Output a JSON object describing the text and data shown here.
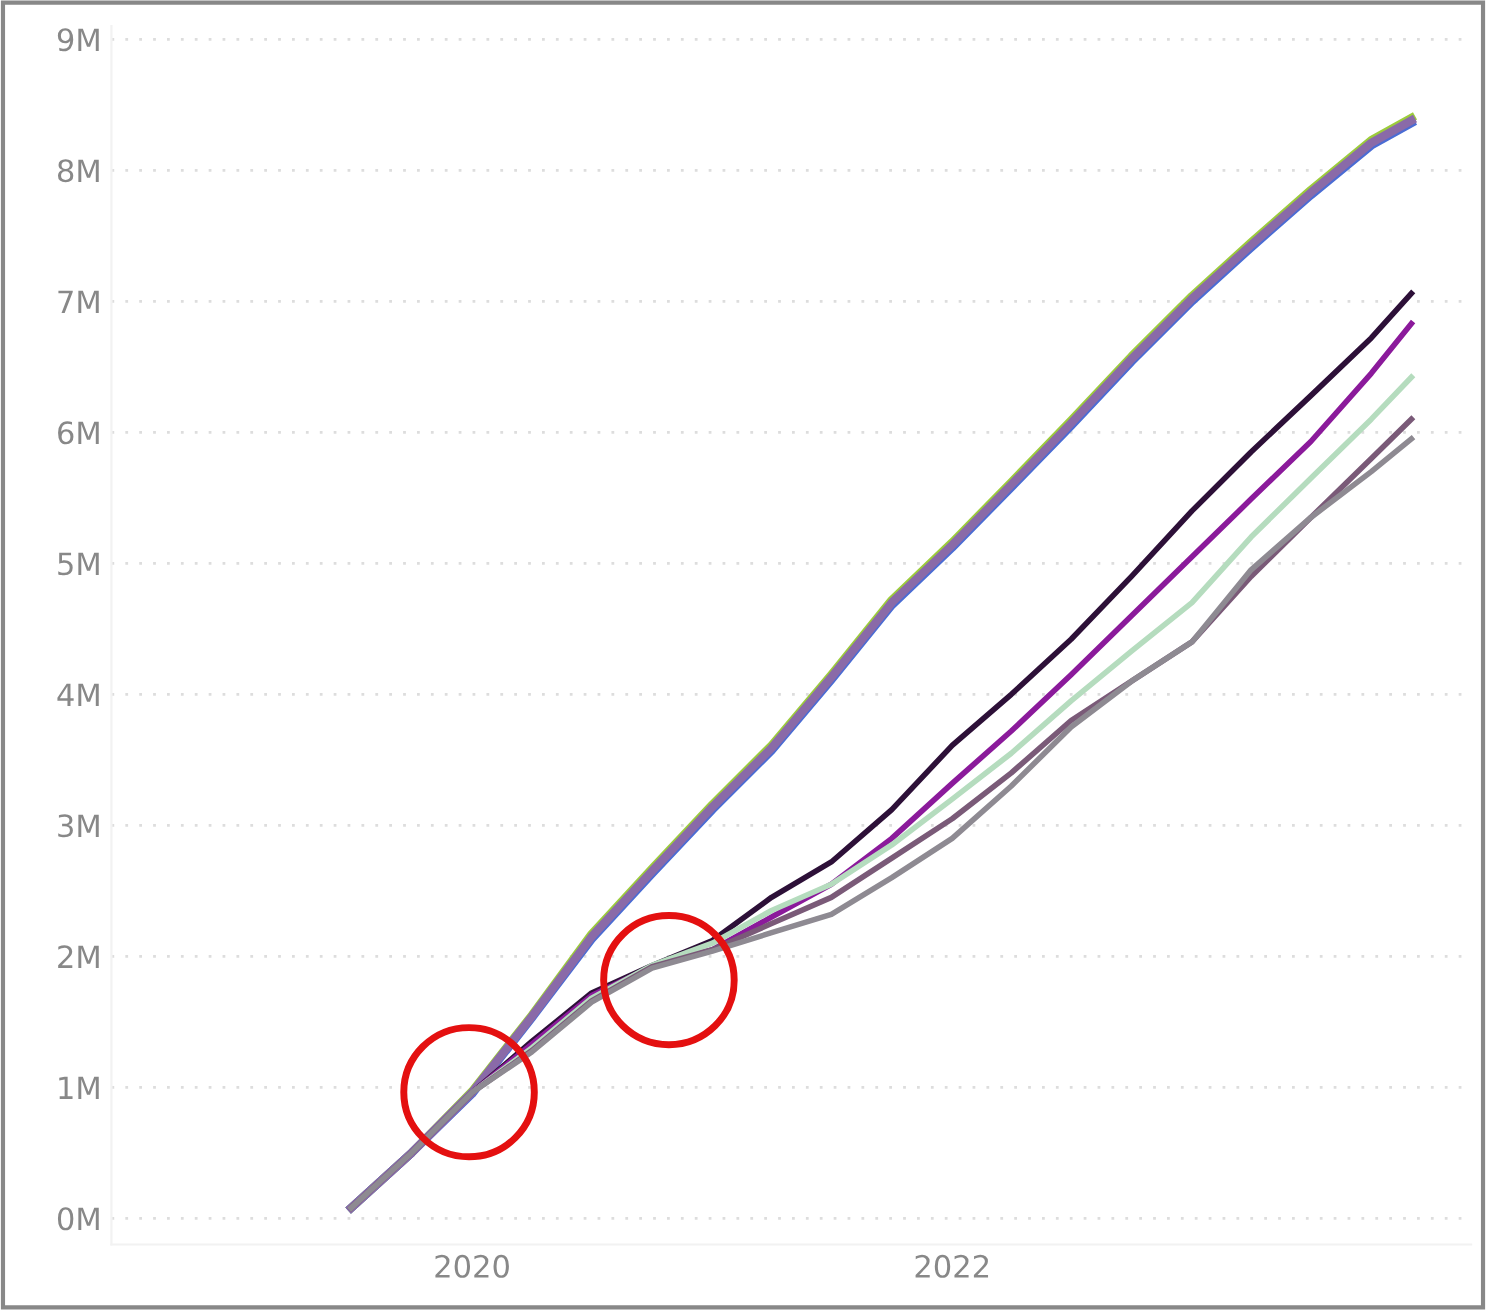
{
  "chart_data": {
    "type": "line",
    "x": [
      "2019-07",
      "2019-10",
      "2020-01",
      "2020-04",
      "2020-07",
      "2020-10",
      "2021-01",
      "2021-04",
      "2021-07",
      "2021-10",
      "2022-01",
      "2022-04",
      "2022-07",
      "2022-10",
      "2023-01",
      "2023-04",
      "2023-07",
      "2023-10",
      "2023-12"
    ],
    "series": [
      {
        "color": "#9ccc3c",
        "values": [
          0.08,
          0.5,
          0.97,
          1.55,
          2.17,
          2.67,
          3.16,
          3.61,
          4.15,
          4.72,
          5.16,
          5.62,
          6.09,
          6.58,
          7.04,
          7.45,
          7.85,
          8.23,
          8.4
        ]
      },
      {
        "color": "#4a6cd4",
        "values": [
          0.08,
          0.5,
          0.95,
          1.53,
          2.13,
          2.63,
          3.12,
          3.57,
          4.11,
          4.68,
          5.12,
          5.58,
          6.05,
          6.54,
          7.0,
          7.41,
          7.81,
          8.19,
          8.36
        ]
      },
      {
        "color": "#8a6aa8",
        "values": [
          0.08,
          0.5,
          0.96,
          1.54,
          2.15,
          2.65,
          3.14,
          3.59,
          4.13,
          4.7,
          5.14,
          5.6,
          6.07,
          6.56,
          7.02,
          7.43,
          7.83,
          8.21,
          8.38
        ]
      },
      {
        "color": "#2d1038",
        "values": [
          0.08,
          0.5,
          0.96,
          1.35,
          1.72,
          1.93,
          2.12,
          2.45,
          2.72,
          3.12,
          3.61,
          4.0,
          4.42,
          4.9,
          5.4,
          5.85,
          6.28,
          6.72,
          7.06
        ]
      },
      {
        "color": "#8b1a9b",
        "values": [
          0.08,
          0.5,
          0.96,
          1.33,
          1.7,
          1.92,
          2.05,
          2.3,
          2.55,
          2.9,
          3.32,
          3.72,
          4.15,
          4.6,
          5.05,
          5.49,
          5.93,
          6.45,
          6.83
        ]
      },
      {
        "color": "#b5dcbe",
        "values": [
          0.08,
          0.5,
          0.96,
          1.3,
          1.68,
          1.93,
          2.1,
          2.35,
          2.55,
          2.85,
          3.2,
          3.55,
          3.95,
          4.33,
          4.7,
          5.2,
          5.65,
          6.1,
          6.42
        ]
      },
      {
        "color": "#7a5a78",
        "values": [
          0.08,
          0.5,
          0.96,
          1.28,
          1.66,
          1.92,
          2.05,
          2.25,
          2.45,
          2.75,
          3.05,
          3.4,
          3.8,
          4.1,
          4.4,
          4.9,
          5.35,
          5.8,
          6.1
        ]
      },
      {
        "color": "#8e8a92",
        "values": [
          0.08,
          0.5,
          0.96,
          1.27,
          1.65,
          1.91,
          2.04,
          2.18,
          2.32,
          2.6,
          2.9,
          3.3,
          3.75,
          4.1,
          4.4,
          4.95,
          5.35,
          5.7,
          5.95
        ]
      }
    ],
    "xlim": [
      "2018-07",
      "2024-03"
    ],
    "xticks": [
      "2020",
      "2022"
    ],
    "ylim": [
      -0.2,
      9.1
    ],
    "yticks": [
      {
        "value": 0,
        "label": "0M"
      },
      {
        "value": 1,
        "label": "1M"
      },
      {
        "value": 2,
        "label": "2M"
      },
      {
        "value": 3,
        "label": "3M"
      },
      {
        "value": 4,
        "label": "4M"
      },
      {
        "value": 5,
        "label": "5M"
      },
      {
        "value": 6,
        "label": "6M"
      },
      {
        "value": 7,
        "label": "7M"
      },
      {
        "value": 8,
        "label": "8M"
      },
      {
        "value": 9,
        "label": "9M"
      }
    ],
    "grid": "y",
    "legend": false,
    "line_style": "solid",
    "marker": "none"
  }
}
